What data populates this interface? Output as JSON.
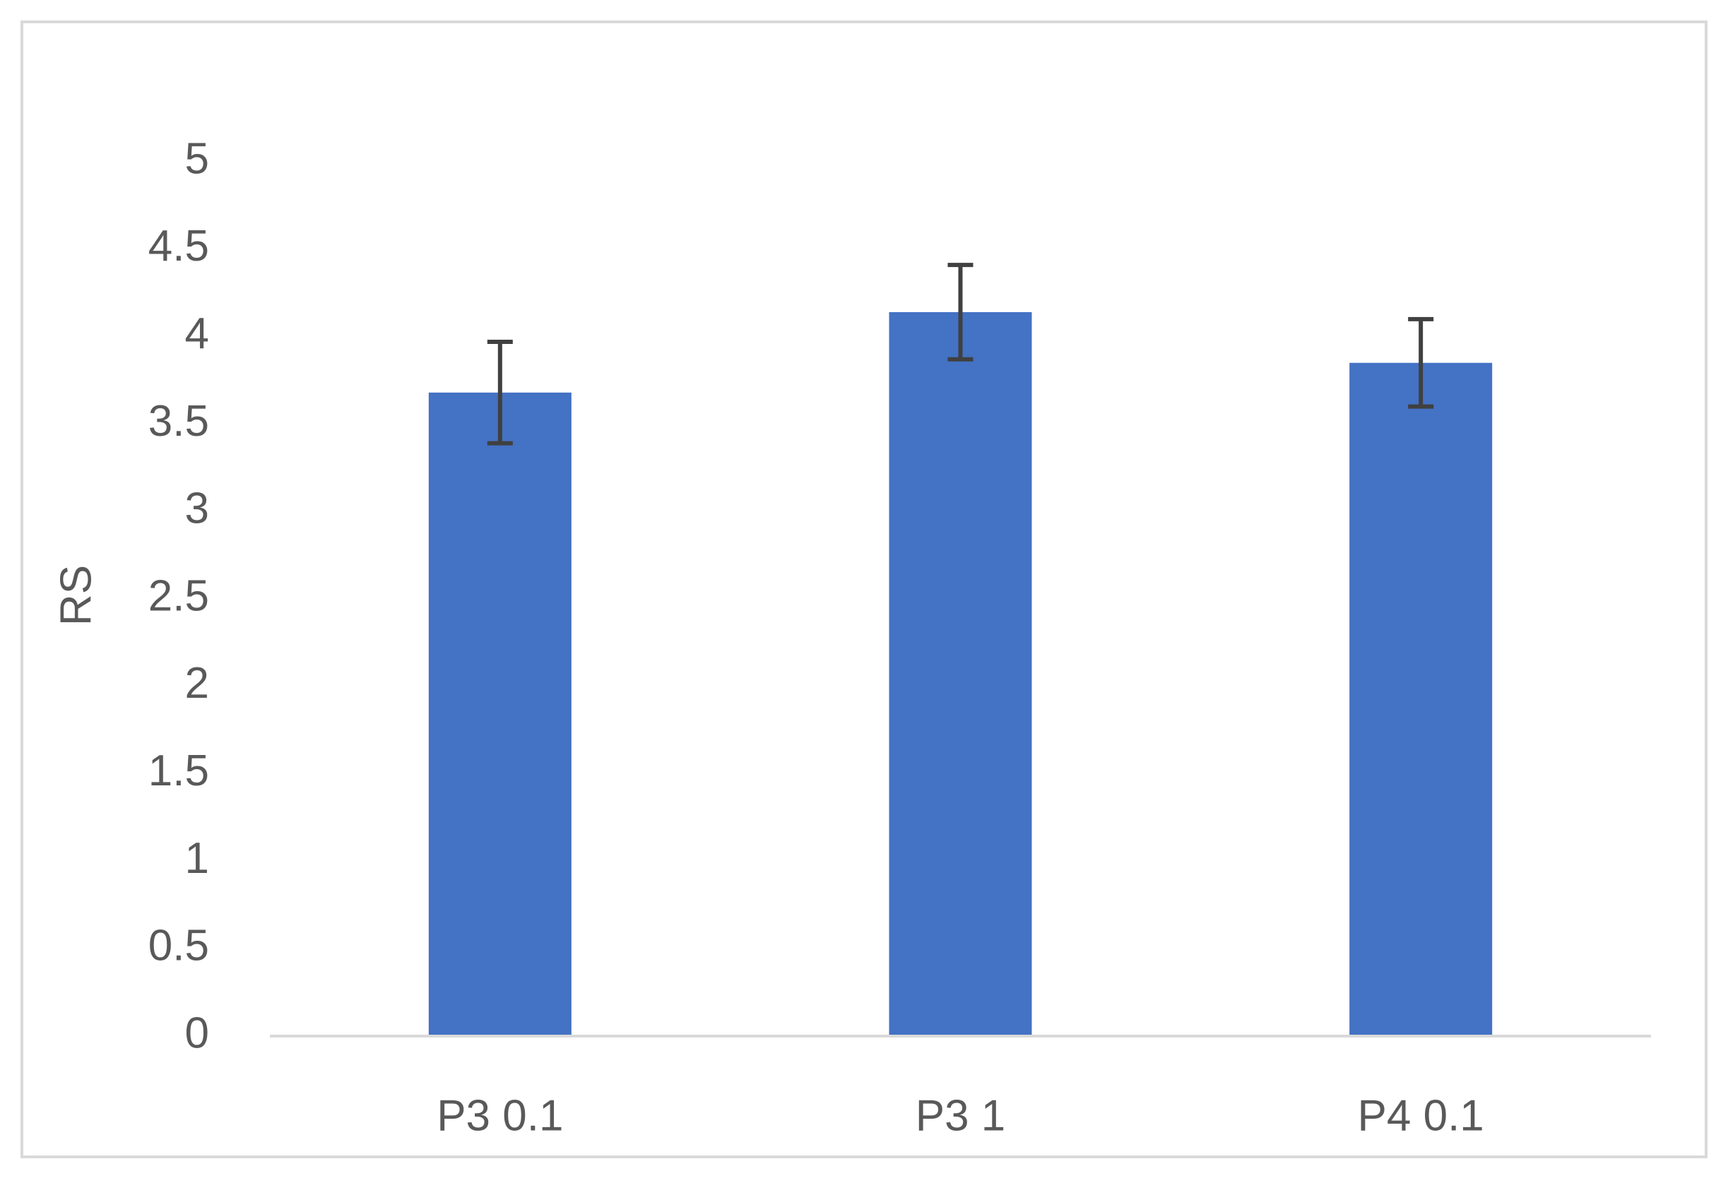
{
  "chart_data": {
    "type": "bar",
    "y_label": "RS",
    "categories": [
      "P3 0.1",
      "P3 1",
      "P4 0.1"
    ],
    "values": [
      3.68,
      4.14,
      3.85
    ],
    "errors": [
      0.29,
      0.27,
      0.25
    ],
    "color": "#4472c4",
    "error_color": "#404040",
    "ylim": [
      0,
      5
    ],
    "yticks": [
      0,
      0.5,
      1,
      1.5,
      2,
      2.5,
      3,
      3.5,
      4,
      4.5,
      5
    ],
    "grid": false
  }
}
